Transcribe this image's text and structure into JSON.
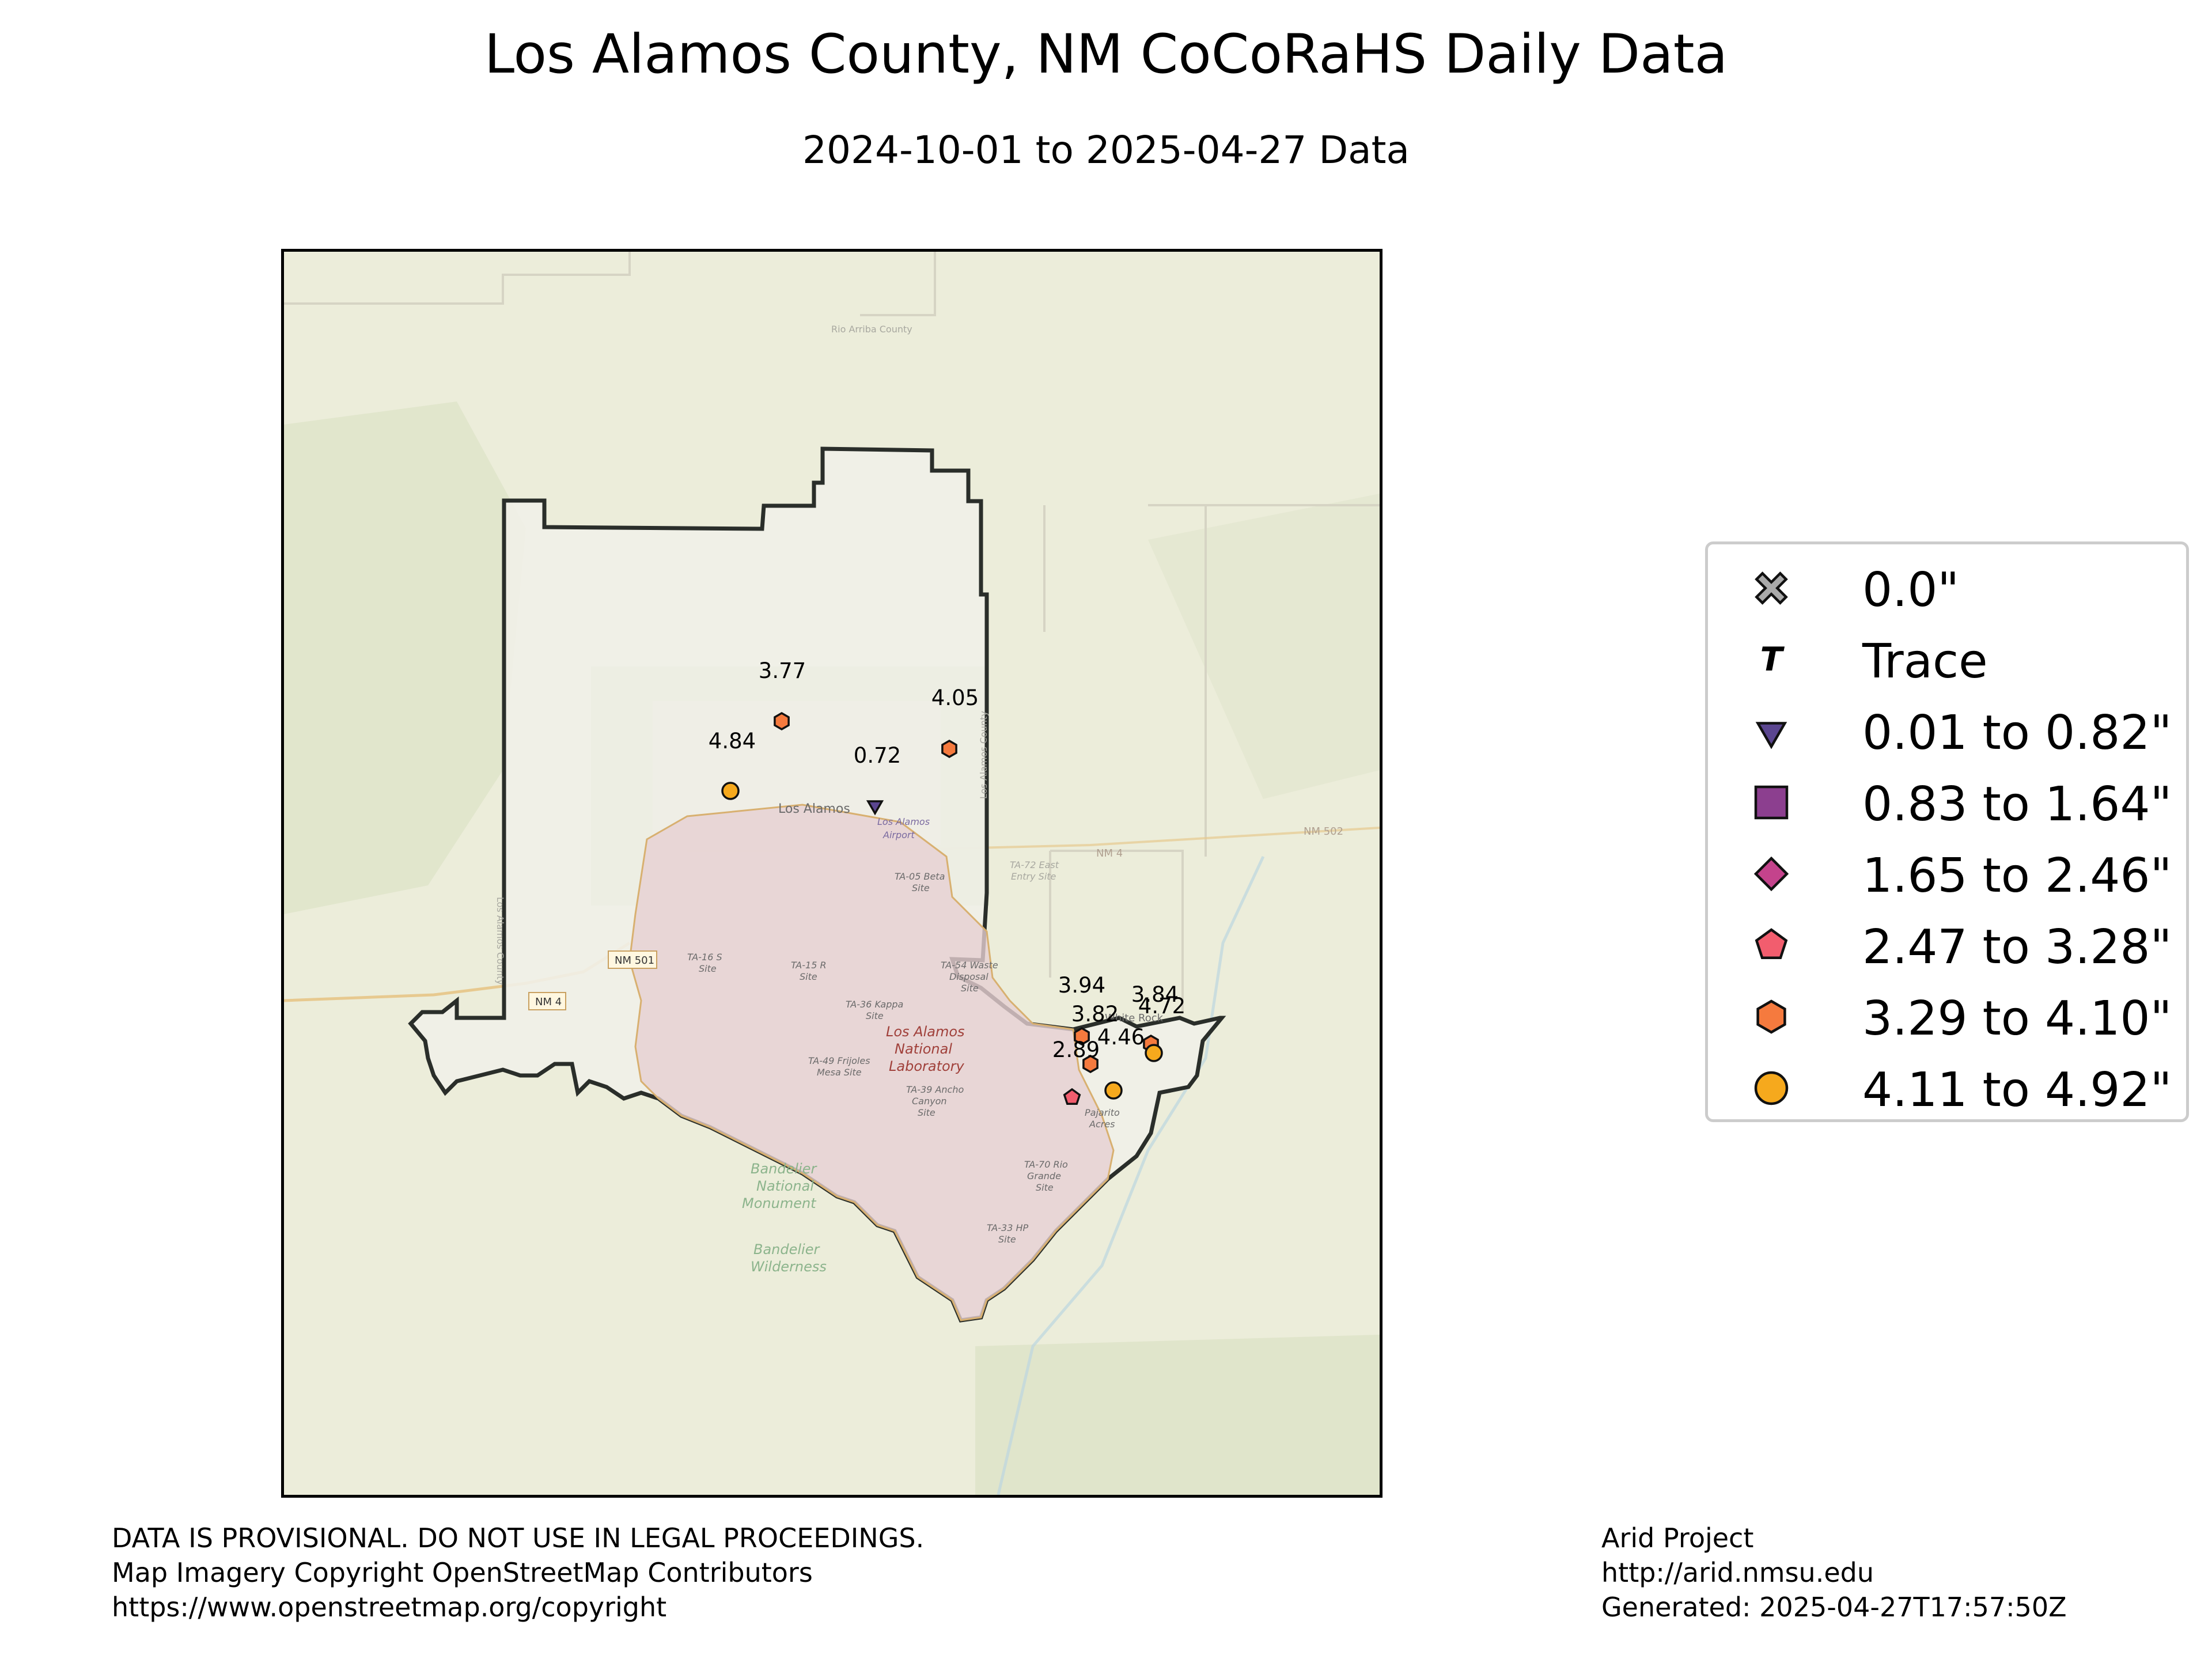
{
  "title": "Los Alamos County, NM CoCoRaHS Daily Data",
  "subtitle": "2024-10-01 to 2025-04-27 Data",
  "map": {
    "basemap_labels": [
      "Los Alamos",
      "Los Alamos Airport",
      "TA-05 Beta Site",
      "TA-16 S Site",
      "TA-15 R Site",
      "TA-36 Kappa Site",
      "TA-54 Waste Disposal Site",
      "Los Alamos National Laboratory",
      "TA-49 Frijoles Mesa Site",
      "TA-39 Ancho Canyon Site",
      "Pajarito Acres",
      "TA-70 Rio Grande Site",
      "TA-33 HP Site",
      "Bandelier National Monument",
      "Bandelier Wilderness",
      "Rio Arriba County",
      "Los Alamos County",
      "NM 501",
      "NM 4",
      "NM 502",
      "TA-72 East Entry Site",
      "White Rock"
    ],
    "stations": [
      {
        "value": "3.77",
        "category": "3.29 to 4.10\""
      },
      {
        "value": "4.05",
        "category": "3.29 to 4.10\""
      },
      {
        "value": "4.84",
        "category": "4.11 to 4.92\""
      },
      {
        "value": "0.72",
        "category": "0.01 to 0.82\""
      },
      {
        "value": "3.94",
        "category": "3.29 to 4.10\""
      },
      {
        "value": "3.84",
        "category": "3.29 to 4.10\""
      },
      {
        "value": "3.82",
        "category": "3.29 to 4.10\""
      },
      {
        "value": "4.72",
        "category": "4.11 to 4.92\""
      },
      {
        "value": "4.46",
        "category": "4.11 to 4.92\""
      },
      {
        "value": "2.89",
        "category": "2.47 to 3.28\""
      }
    ]
  },
  "legend": {
    "items": [
      {
        "label": "0.0\"",
        "icon": "x-cross-icon",
        "color": "#aaaaaa"
      },
      {
        "label": "Trace",
        "icon": "trace-t-icon",
        "color": "#000000"
      },
      {
        "label": "0.01 to 0.82\"",
        "icon": "triangle-down-icon",
        "color": "#5b4690"
      },
      {
        "label": "0.83 to 1.64\"",
        "icon": "square-icon",
        "color": "#8c3f8f"
      },
      {
        "label": "1.65 to 2.46\"",
        "icon": "diamond-icon",
        "color": "#c4438c"
      },
      {
        "label": "2.47 to 3.28\"",
        "icon": "pentagon-icon",
        "color": "#f25d6e"
      },
      {
        "label": "3.29 to 4.10\"",
        "icon": "hexagon-icon",
        "color": "#f57a3e"
      },
      {
        "label": "4.11 to 4.92\"",
        "icon": "circle-icon",
        "color": "#f6a91d"
      }
    ]
  },
  "footer": {
    "left_line1": "DATA IS PROVISIONAL. DO NOT USE IN LEGAL PROCEEDINGS.",
    "left_line2": "Map Imagery Copyright OpenStreetMap Contributors",
    "left_line3": "https://www.openstreetmap.org/copyright",
    "right_line1": "Arid Project",
    "right_line2": "http://arid.nmsu.edu",
    "right_line3": "Generated: 2025-04-27T17:57:50Z"
  }
}
